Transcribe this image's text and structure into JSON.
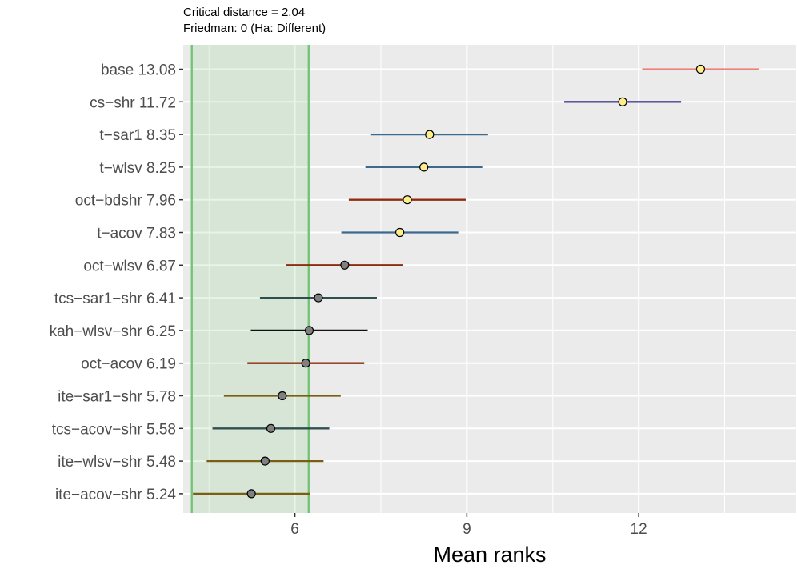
{
  "chart_data": {
    "type": "scatter",
    "subtitle_lines": [
      "Critical distance = 2.04",
      "Friedman: 0 (Ha: Different)"
    ],
    "xlabel": "Mean ranks",
    "ylabel": "",
    "xlim": [
      4.05,
      14.75
    ],
    "x_ticks": [
      6,
      9,
      12
    ],
    "x_tick_labels": [
      "6",
      "9",
      "12"
    ],
    "critical_distance": 2.04,
    "critical_band": [
      4.2,
      6.24
    ],
    "grid": true,
    "items": [
      {
        "label": "base 13.08",
        "mean": 13.08,
        "low": 12.06,
        "high": 14.1,
        "color": "#f0807a",
        "fill": "#ffef8c"
      },
      {
        "label": "cs−shr 11.72",
        "mean": 11.72,
        "low": 10.7,
        "high": 12.74,
        "color": "#4b3f91",
        "fill": "#ffef8c"
      },
      {
        "label": "t−sar1 8.35",
        "mean": 8.35,
        "low": 7.33,
        "high": 9.37,
        "color": "#3c6a8e",
        "fill": "#ffef8c"
      },
      {
        "label": "t−wlsv 8.25",
        "mean": 8.25,
        "low": 7.23,
        "high": 9.27,
        "color": "#3c6a8e",
        "fill": "#ffef8c"
      },
      {
        "label": "oct−bdshr 7.96",
        "mean": 7.96,
        "low": 6.94,
        "high": 8.98,
        "color": "#8c2d0f",
        "fill": "#ffef8c"
      },
      {
        "label": "t−acov 7.83",
        "mean": 7.83,
        "low": 6.81,
        "high": 8.85,
        "color": "#3c6a8e",
        "fill": "#ffef8c"
      },
      {
        "label": "oct−wlsv 6.87",
        "mean": 6.87,
        "low": 5.85,
        "high": 7.89,
        "color": "#8c2d0f",
        "fill": "#808080"
      },
      {
        "label": "tcs−sar1−shr 6.41",
        "mean": 6.41,
        "low": 5.39,
        "high": 7.43,
        "color": "#2f4f4f",
        "fill": "#808080"
      },
      {
        "label": "kah−wlsv−shr 6.25",
        "mean": 6.25,
        "low": 5.23,
        "high": 7.27,
        "color": "#111111",
        "fill": "#808080"
      },
      {
        "label": "oct−acov 6.19",
        "mean": 6.19,
        "low": 5.17,
        "high": 7.21,
        "color": "#8c2d0f",
        "fill": "#808080"
      },
      {
        "label": "ite−sar1−shr 5.78",
        "mean": 5.78,
        "low": 4.76,
        "high": 6.8,
        "color": "#7a5f12",
        "fill": "#808080"
      },
      {
        "label": "tcs−acov−shr 5.58",
        "mean": 5.58,
        "low": 4.56,
        "high": 6.6,
        "color": "#2f4f4f",
        "fill": "#808080"
      },
      {
        "label": "ite−wlsv−shr 5.48",
        "mean": 5.48,
        "low": 4.46,
        "high": 6.5,
        "color": "#7a5f12",
        "fill": "#808080"
      },
      {
        "label": "ite−acov−shr 5.24",
        "mean": 5.24,
        "low": 4.22,
        "high": 6.26,
        "color": "#7a5f12",
        "fill": "#808080"
      }
    ]
  }
}
